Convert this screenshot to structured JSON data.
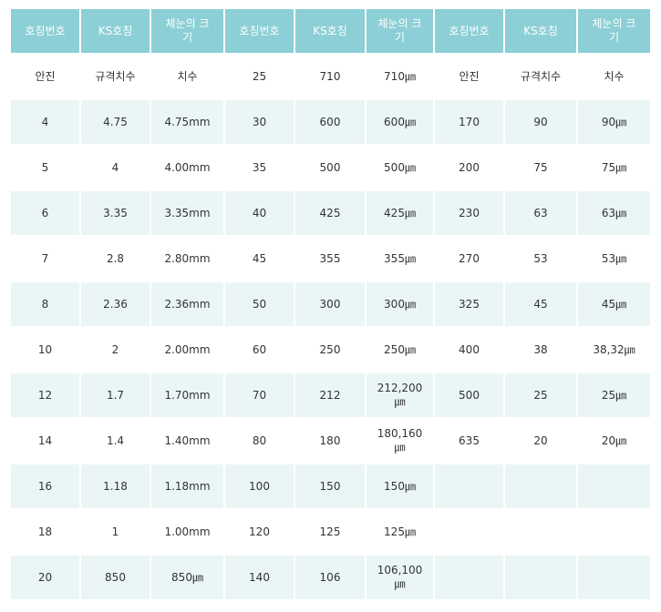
{
  "table": {
    "headers": [
      "호칭번호",
      "KS호칭",
      "체눈의 크기",
      "호칭번호",
      "KS호칭",
      "체눈의 크기",
      "호칭번호",
      "KS호칭",
      "체눈의 크기"
    ],
    "rows": [
      [
        "안진",
        "규격치수",
        "치수",
        "25",
        "710",
        "710㎛",
        "안진",
        "규격치수",
        "치수"
      ],
      [
        "4",
        "4.75",
        "4.75mm",
        "30",
        "600",
        "600㎛",
        "170",
        "90",
        "90㎛"
      ],
      [
        "5",
        "4",
        "4.00mm",
        "35",
        "500",
        "500㎛",
        "200",
        "75",
        "75㎛"
      ],
      [
        "6",
        "3.35",
        "3.35mm",
        "40",
        "425",
        "425㎛",
        "230",
        "63",
        "63㎛"
      ],
      [
        "7",
        "2.8",
        "2.80mm",
        "45",
        "355",
        "355㎛",
        "270",
        "53",
        "53㎛"
      ],
      [
        "8",
        "2.36",
        "2.36mm",
        "50",
        "300",
        "300㎛",
        "325",
        "45",
        "45㎛"
      ],
      [
        "10",
        "2",
        "2.00mm",
        "60",
        "250",
        "250㎛",
        "400",
        "38",
        "38,32㎛"
      ],
      [
        "12",
        "1.7",
        "1.70mm",
        "70",
        "212",
        "212,200㎛",
        "500",
        "25",
        "25㎛"
      ],
      [
        "14",
        "1.4",
        "1.40mm",
        "80",
        "180",
        "180,160㎛",
        "635",
        "20",
        "20㎛"
      ],
      [
        "16",
        "1.18",
        "1.18mm",
        "100",
        "150",
        "150㎛",
        "",
        "",
        ""
      ],
      [
        "18",
        "1",
        "1.00mm",
        "120",
        "125",
        "125㎛",
        "",
        "",
        ""
      ],
      [
        "20",
        "850",
        "850㎛",
        "140",
        "106",
        "106,100㎛",
        "",
        "",
        ""
      ]
    ]
  }
}
